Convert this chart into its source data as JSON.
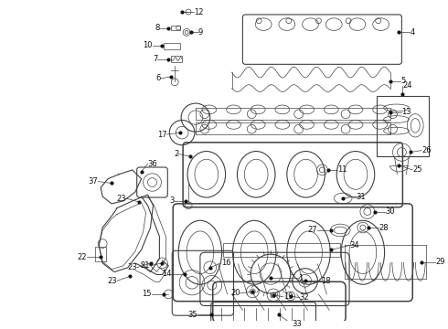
{
  "title": "",
  "bg_color": "#ffffff",
  "line_color": "#404040",
  "label_color": "#111111",
  "fig_width": 4.9,
  "fig_height": 3.6,
  "dpi": 100
}
